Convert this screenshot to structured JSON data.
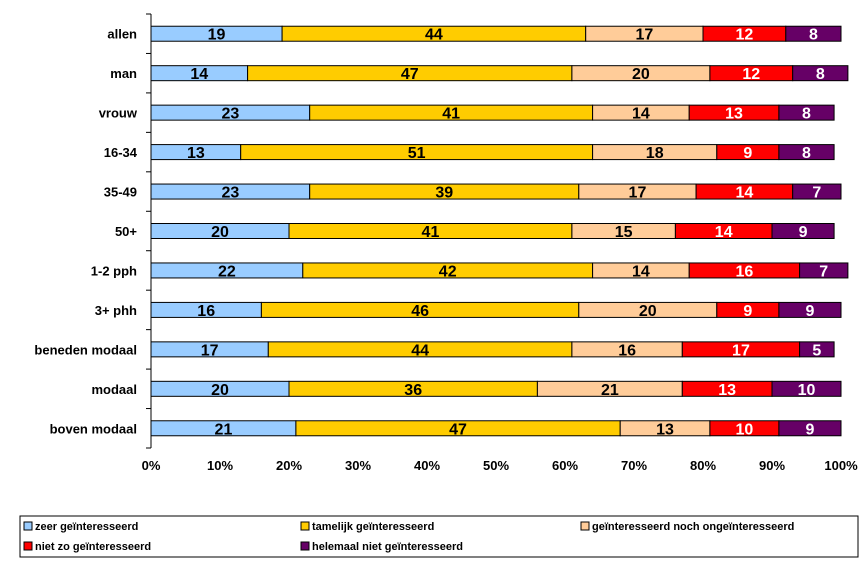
{
  "chart_data": {
    "type": "bar",
    "orientation": "horizontal",
    "stacked": true,
    "percent": true,
    "categories": [
      "allen",
      "man",
      "vrouw",
      "16-34",
      "35-49",
      "50+",
      "1-2 pph",
      "3+ phh",
      "beneden modaal",
      "modaal",
      "boven modaal"
    ],
    "series": [
      {
        "name": "zeer geïnteresseerd",
        "color": "#99ccff",
        "label_color": "#000000",
        "values": [
          19,
          14,
          23,
          13,
          23,
          20,
          22,
          16,
          17,
          20,
          21
        ]
      },
      {
        "name": "tamelijk geïnteresseerd",
        "color": "#ffcc00",
        "label_color": "#000000",
        "values": [
          44,
          47,
          41,
          51,
          39,
          41,
          42,
          46,
          44,
          36,
          47
        ]
      },
      {
        "name": "geïnteresseerd noch ongeïnteresseerd",
        "color": "#ffcc99",
        "label_color": "#000000",
        "values": [
          17,
          20,
          14,
          18,
          17,
          15,
          14,
          20,
          16,
          21,
          13
        ]
      },
      {
        "name": "niet zo geïnteresseerd",
        "color": "#ff0000",
        "label_color": "#ffffff",
        "values": [
          12,
          12,
          13,
          9,
          14,
          14,
          16,
          9,
          17,
          13,
          10
        ]
      },
      {
        "name": "helemaal niet geïnteresseerd",
        "color": "#660066",
        "label_color": "#ffffff",
        "values": [
          8,
          8,
          8,
          8,
          7,
          9,
          7,
          9,
          5,
          10,
          9
        ]
      }
    ],
    "x_ticks": [
      "0%",
      "10%",
      "20%",
      "30%",
      "40%",
      "50%",
      "60%",
      "70%",
      "80%",
      "90%",
      "100%"
    ],
    "xlim": [
      0,
      100
    ],
    "grid": false,
    "legend_position": "bottom"
  }
}
